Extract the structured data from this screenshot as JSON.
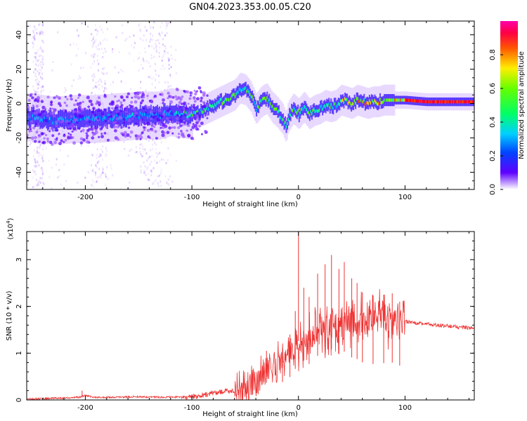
{
  "title": "GN04.2023.353.00.05.C20",
  "chart_data": [
    {
      "type": "heatmap",
      "name": "spectrogram",
      "xlabel": "Height of straight line (km)",
      "ylabel": "Frequency (Hz)",
      "xlim": [
        -255,
        165
      ],
      "ylim": [
        -50,
        48
      ],
      "x_ticks": [
        -200,
        -100,
        0,
        100
      ],
      "y_ticks": [
        -40,
        -20,
        0,
        20,
        40
      ],
      "colorbar": {
        "label": "Normalized spectral amplitude",
        "range": [
          0,
          1
        ],
        "ticks": [
          0.0,
          0.2,
          0.4,
          0.6,
          0.8
        ]
      },
      "ridge_frequency_hz": [
        [
          -250,
          -8
        ],
        [
          -230,
          -10
        ],
        [
          -210,
          -9
        ],
        [
          -190,
          -9
        ],
        [
          -170,
          -8
        ],
        [
          -150,
          -7
        ],
        [
          -130,
          -7
        ],
        [
          -120,
          -5
        ],
        [
          -110,
          -6
        ],
        [
          -100,
          -7
        ],
        [
          -90,
          -4
        ],
        [
          -80,
          -1
        ],
        [
          -70,
          2
        ],
        [
          -60,
          5
        ],
        [
          -55,
          9
        ],
        [
          -50,
          8
        ],
        [
          -45,
          4
        ],
        [
          -40,
          -3
        ],
        [
          -35,
          1
        ],
        [
          -30,
          3
        ],
        [
          -25,
          -2
        ],
        [
          -20,
          -5
        ],
        [
          -15,
          -9
        ],
        [
          -12,
          -14
        ],
        [
          -10,
          -8
        ],
        [
          -5,
          -3
        ],
        [
          0,
          -6
        ],
        [
          5,
          -2
        ],
        [
          10,
          -6
        ],
        [
          15,
          -4
        ],
        [
          20,
          -3
        ],
        [
          25,
          -1
        ],
        [
          30,
          -2
        ],
        [
          35,
          -1
        ],
        [
          40,
          2
        ],
        [
          45,
          1
        ],
        [
          50,
          0
        ],
        [
          55,
          2
        ],
        [
          60,
          1
        ],
        [
          65,
          0
        ],
        [
          70,
          1
        ],
        [
          75,
          1
        ],
        [
          80,
          2
        ],
        [
          90,
          2
        ],
        [
          100,
          2
        ],
        [
          120,
          1
        ],
        [
          140,
          1
        ],
        [
          165,
          1
        ]
      ]
    },
    {
      "type": "line",
      "name": "snr",
      "xlabel": "Height of straight line (km)",
      "ylabel": "SNR (10 * v/v)",
      "y_multiplier": "(x10",
      "y_multiplier_exp": "4",
      "y_multiplier_close": ")",
      "xlim": [
        -255,
        165
      ],
      "ylim": [
        0,
        3.6
      ],
      "x_ticks": [
        -200,
        -100,
        0,
        100
      ],
      "y_ticks": [
        0,
        1,
        2,
        3
      ],
      "color": "#ee3333",
      "series": [
        {
          "x": [
            -255,
            -240,
            -220,
            -205,
            -200,
            -190,
            -170,
            -150,
            -130,
            -110,
            -100,
            -90,
            -80,
            -70,
            -60,
            -50,
            -45,
            -40,
            -35,
            -30,
            -25,
            -20,
            -15,
            -10,
            -5,
            0,
            5,
            10,
            15,
            20,
            25,
            30,
            35,
            40,
            45,
            50,
            55,
            60,
            65,
            70,
            75,
            80,
            85,
            90,
            95,
            100,
            110,
            120,
            130,
            140,
            150,
            165
          ],
          "y": [
            0.02,
            0.03,
            0.04,
            0.06,
            0.1,
            0.05,
            0.06,
            0.07,
            0.06,
            0.06,
            0.07,
            0.1,
            0.15,
            0.18,
            0.2,
            0.25,
            0.35,
            0.5,
            0.55,
            0.6,
            0.75,
            0.8,
            0.85,
            1.05,
            1.1,
            1.2,
            1.2,
            1.3,
            1.4,
            1.5,
            1.55,
            1.6,
            1.6,
            1.65,
            1.6,
            1.65,
            1.7,
            1.7,
            1.65,
            1.75,
            1.7,
            1.75,
            1.75,
            1.7,
            1.7,
            1.68,
            1.65,
            1.62,
            1.6,
            1.58,
            1.56,
            1.53
          ],
          "spikes": [
            [
              -203,
              0.2
            ],
            [
              -100,
              0.12
            ],
            [
              -30,
              1.05
            ],
            [
              -15,
              1.1
            ],
            [
              -8,
              1.4
            ],
            [
              -3,
              1.9
            ],
            [
              0,
              3.6
            ],
            [
              5,
              2.4
            ],
            [
              10,
              2.2
            ],
            [
              18,
              2.7
            ],
            [
              25,
              2.9
            ],
            [
              31,
              3.1
            ],
            [
              38,
              2.8
            ],
            [
              43,
              2.95
            ],
            [
              50,
              2.6
            ],
            [
              55,
              2.5
            ],
            [
              60,
              2.3
            ],
            [
              70,
              2.2
            ],
            [
              80,
              2.25
            ],
            [
              88,
              2.28
            ],
            [
              95,
              2.1
            ]
          ]
        }
      ]
    }
  ]
}
